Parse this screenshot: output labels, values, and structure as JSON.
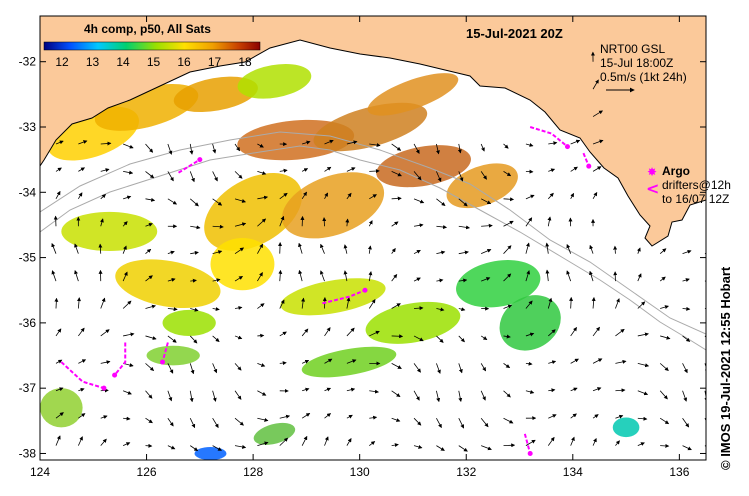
{
  "map": {
    "title": "15-Jul-2021 20Z",
    "product": "4h comp, p50, All Sats",
    "credit": "©  IMOS 19-Jul-2021 12:55 Hobart",
    "colors": {
      "land": "#fbc99a",
      "ocean": "#ffffff",
      "contour": "#aaaaaa",
      "drifter": "#ff00ff"
    },
    "colorbar": {
      "labels": [
        "12",
        "13",
        "14",
        "15",
        "16",
        "17",
        "18"
      ],
      "stops": [
        "#00007f",
        "#0050ff",
        "#00c8ff",
        "#00d070",
        "#9be000",
        "#ffe000",
        "#f0a000",
        "#c84000",
        "#8b0000"
      ]
    },
    "x_ticks": [
      "124",
      "126",
      "128",
      "130",
      "132",
      "134",
      "136"
    ],
    "y_ticks": [
      "-32",
      "-33",
      "-34",
      "-35",
      "-36",
      "-37",
      "-38"
    ],
    "extent": {
      "lon_min": 124,
      "lon_max": 136.5,
      "lat_min": -38.1,
      "lat_max": -31.3
    },
    "legend": {
      "dataset": "NRT00 GSL",
      "time": "15-Jul 18:00Z",
      "scale": "0.5m/s (1kt 24h)",
      "argo_label": "Argo",
      "drifters_label": "drifters@12h",
      "drifters_to": "to 16/07 12Z",
      "argo_symbol": "✸",
      "drifter_symbol": "<"
    }
  }
}
